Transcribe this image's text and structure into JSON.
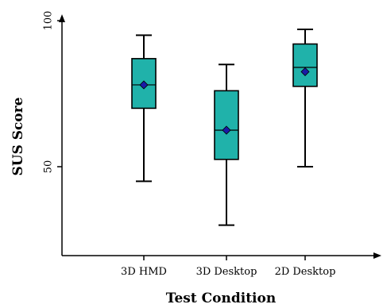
{
  "chart_data": {
    "type": "box",
    "title": "",
    "xlabel": "Test Condition",
    "ylabel": "SUS Score",
    "y_tick_values": [
      50,
      100
    ],
    "y_tick_labels": [
      "50",
      "100"
    ],
    "ylim": [
      20,
      100
    ],
    "categories": [
      "3D HMD",
      "3D Desktop",
      "2D Desktop"
    ],
    "boxes": [
      {
        "category": "3D HMD",
        "whisker_low": 45,
        "q1": 70,
        "median": 78,
        "q3": 87,
        "whisker_high": 95,
        "mean": 78
      },
      {
        "category": "3D Desktop",
        "whisker_low": 30,
        "q1": 52.5,
        "median": 62.5,
        "q3": 76,
        "whisker_high": 85,
        "mean": 62.5
      },
      {
        "category": "2D Desktop",
        "whisker_low": 50,
        "q1": 77.5,
        "median": 84,
        "q3": 92,
        "whisker_high": 97,
        "mean": 82.5
      }
    ],
    "grid": false,
    "legend": "none",
    "colors": {
      "box_fill": "#20b2aa",
      "box_stroke": "#000000",
      "mean_marker": "#1a1aa6",
      "axis": "#000000"
    }
  }
}
